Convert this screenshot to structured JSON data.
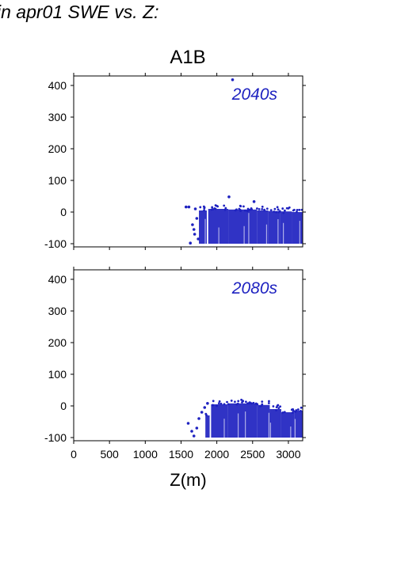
{
  "figure_title": "in apr01 SWE vs. Z:",
  "scenario_title": "A1B",
  "colors": {
    "points": "#1e22c0",
    "panel_label": "#1e22c0",
    "axis": "#000000"
  },
  "chart_data": [
    {
      "type": "scatter",
      "panel_label": "2040s",
      "xlabel": "",
      "ylabel": "",
      "xlim": [
        0,
        3200
      ],
      "ylim": [
        -110,
        430
      ],
      "yticks": [
        -100,
        0,
        100,
        200,
        300,
        400
      ],
      "ytick_labels": [
        "-100",
        "0",
        "100",
        "200",
        "300",
        "400"
      ],
      "grid": false,
      "dense_bands": [
        {
          "x": [
            1750,
            1860
          ],
          "y": [
            -100,
            5
          ]
        },
        {
          "x": [
            1880,
            2160
          ],
          "y": [
            -100,
            10
          ]
        },
        {
          "x": [
            2160,
            2560
          ],
          "y": [
            -100,
            8
          ]
        },
        {
          "x": [
            2560,
            2720
          ],
          "y": [
            -100,
            5
          ]
        },
        {
          "x": [
            2720,
            2880
          ],
          "y": [
            -100,
            3
          ]
        },
        {
          "x": [
            2880,
            3050
          ],
          "y": [
            -100,
            2
          ]
        },
        {
          "x": [
            3050,
            3200
          ],
          "y": [
            -100,
            0
          ]
        }
      ],
      "points": [
        {
          "x": 2220,
          "y": 418
        },
        {
          "x": 2170,
          "y": 48
        },
        {
          "x": 2520,
          "y": 33
        },
        {
          "x": 1570,
          "y": 16
        },
        {
          "x": 1610,
          "y": 16
        },
        {
          "x": 1700,
          "y": 10
        },
        {
          "x": 1660,
          "y": -40
        },
        {
          "x": 1690,
          "y": -70
        },
        {
          "x": 1630,
          "y": -98
        },
        {
          "x": 1720,
          "y": -20
        },
        {
          "x": 1680,
          "y": -55
        },
        {
          "x": 1740,
          "y": -85
        }
      ]
    },
    {
      "type": "scatter",
      "panel_label": "2080s",
      "xlabel": "Z(m)",
      "ylabel": "",
      "xlim": [
        0,
        3200
      ],
      "ylim": [
        -110,
        430
      ],
      "xticks": [
        0,
        500,
        1000,
        1500,
        2000,
        2500,
        3000
      ],
      "xtick_labels": [
        "0",
        "500",
        "1000",
        "1500",
        "2000",
        "2500",
        "3000"
      ],
      "yticks": [
        -100,
        0,
        100,
        200,
        300,
        400
      ],
      "ytick_labels": [
        "-100",
        "0",
        "100",
        "200",
        "300",
        "400"
      ],
      "grid": false,
      "dense_bands": [
        {
          "x": [
            1840,
            1900
          ],
          "y": [
            -100,
            -30
          ]
        },
        {
          "x": [
            1920,
            2150
          ],
          "y": [
            -100,
            5
          ]
        },
        {
          "x": [
            2150,
            2560
          ],
          "y": [
            -100,
            8
          ]
        },
        {
          "x": [
            2560,
            2740
          ],
          "y": [
            -100,
            3
          ]
        },
        {
          "x": [
            2740,
            2900
          ],
          "y": [
            -100,
            -10
          ]
        },
        {
          "x": [
            2900,
            3080
          ],
          "y": [
            -100,
            -20
          ]
        },
        {
          "x": [
            3080,
            3200
          ],
          "y": [
            -100,
            -15
          ]
        }
      ],
      "points": [
        {
          "x": 1870,
          "y": 8
        },
        {
          "x": 1830,
          "y": -5
        },
        {
          "x": 1790,
          "y": -20
        },
        {
          "x": 1600,
          "y": -55
        },
        {
          "x": 1650,
          "y": -80
        },
        {
          "x": 1680,
          "y": -95
        },
        {
          "x": 1750,
          "y": -40
        },
        {
          "x": 1720,
          "y": -70
        },
        {
          "x": 2460,
          "y": 10
        }
      ]
    }
  ]
}
